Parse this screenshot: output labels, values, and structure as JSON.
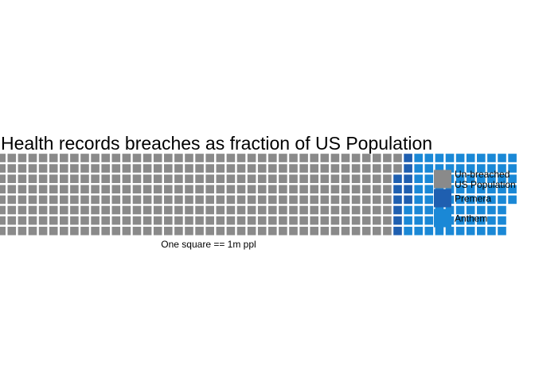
{
  "chart_data": {
    "type": "waffle",
    "title": "Health records breaches as fraction of US Population",
    "xlabel": "One square == 1m ppl",
    "unit": "1m ppl per square",
    "rows": 8,
    "fill_order": "column-major, top-to-bottom",
    "series": [
      {
        "name": "Un-breached US Population",
        "legend_lines": [
          "Un-breached",
          "US Population"
        ],
        "value": 306,
        "color": "#8a8a8a"
      },
      {
        "name": "Premera",
        "legend_lines": [
          "Premera"
        ],
        "value": 11,
        "color": "#1f5fb0"
      },
      {
        "name": "Anthem",
        "legend_lines": [
          "Anthem"
        ],
        "value": 80,
        "color": "#1a88d6"
      }
    ],
    "legend_position": "right",
    "grid": false
  }
}
